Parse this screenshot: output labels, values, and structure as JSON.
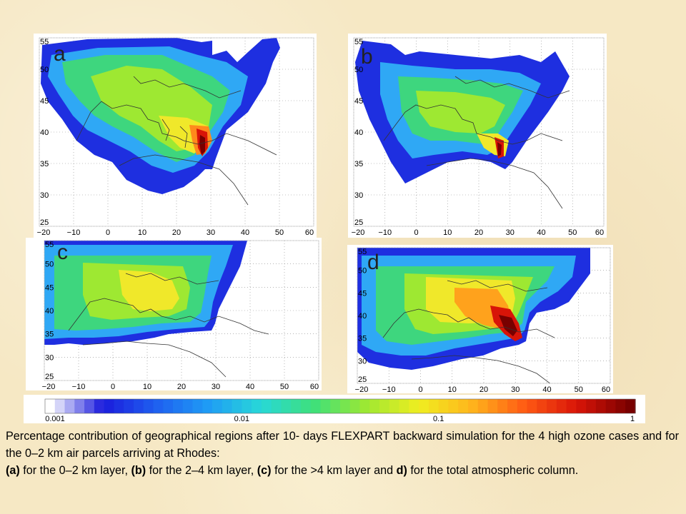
{
  "chart_data": [
    {
      "type": "heatmap",
      "panel": "a",
      "x_ticks": [
        "−20",
        "−10",
        "0",
        "10",
        "20",
        "30",
        "40",
        "50",
        "60"
      ],
      "y_ticks": [
        "25",
        "30",
        "35",
        "40",
        "45",
        "50",
        "55"
      ],
      "xlim": [
        -20,
        60
      ],
      "ylim": [
        25,
        55
      ],
      "grid": true,
      "hotspot": {
        "lon": 27,
        "lat": 37.5,
        "value_class": "~1"
      },
      "spread": "Europe, N. Africa, Eastern Mediterranean"
    },
    {
      "type": "heatmap",
      "panel": "b",
      "x_ticks": [
        "−20",
        "−10",
        "0",
        "10",
        "20",
        "30",
        "40",
        "50",
        "60"
      ],
      "y_ticks": [
        "25",
        "30",
        "35",
        "40",
        "45",
        "50",
        "55"
      ],
      "xlim": [
        -20,
        60
      ],
      "ylim": [
        25,
        55
      ],
      "grid": true,
      "hotspot": {
        "lon": 27,
        "lat": 37.5,
        "value_class": "~1"
      },
      "spread": "Europe, Eastern Mediterranean"
    },
    {
      "type": "heatmap",
      "panel": "c",
      "x_ticks": [
        "−20",
        "−10",
        "0",
        "10",
        "20",
        "30",
        "40",
        "50",
        "60"
      ],
      "y_ticks": [
        "25",
        "30",
        "35",
        "40",
        "45",
        "50",
        "55"
      ],
      "xlim": [
        -20,
        60
      ],
      "ylim": [
        25,
        55
      ],
      "grid": true,
      "hotspot": {
        "lon": 10,
        "lat": 42,
        "value_class": "~0.05"
      },
      "spread": "Western and Central Europe"
    },
    {
      "type": "heatmap",
      "panel": "d",
      "x_ticks": [
        "−20",
        "−10",
        "0",
        "10",
        "20",
        "30",
        "40",
        "50",
        "60"
      ],
      "y_ticks": [
        "25",
        "30",
        "35",
        "40",
        "45",
        "50",
        "55"
      ],
      "xlim": [
        -20,
        60
      ],
      "ylim": [
        25,
        55
      ],
      "grid": true,
      "hotspot": {
        "lon": 28,
        "lat": 38,
        "value_class": "~1"
      },
      "spread": "Europe, Eastern Mediterranean"
    }
  ],
  "panels": [
    {
      "label": "a"
    },
    {
      "label": "b"
    },
    {
      "label": "c"
    },
    {
      "label": "d"
    }
  ],
  "colorbar": {
    "scale": "log",
    "range": [
      0.001,
      1
    ],
    "tick_labels": [
      "0.001",
      "0.01",
      "0.1",
      "1"
    ],
    "colors": [
      "#ffffff",
      "#1b1bdc",
      "#1f5ff0",
      "#1f9cf5",
      "#28d8d8",
      "#3ee07a",
      "#9ee832",
      "#f0ee20",
      "#ffb41c",
      "#ff5a14",
      "#d81408",
      "#780000"
    ]
  },
  "caption": {
    "line1": "Percentage contribution of geographical regions after 10- days FLEXPART backward simulation for the 4 high ozone cases and for the 0–2 km air parcels arriving at Rhodes:",
    "a_label": "(a)",
    "a_text": " for the 0–2 km layer, ",
    "b_label": "(b)",
    "b_text": " for the 2–4 km layer, ",
    "c_label": "(c)",
    "c_text": " for the >4 km layer and ",
    "d_label": "d)",
    "d_text": " for the total atmospheric column."
  }
}
